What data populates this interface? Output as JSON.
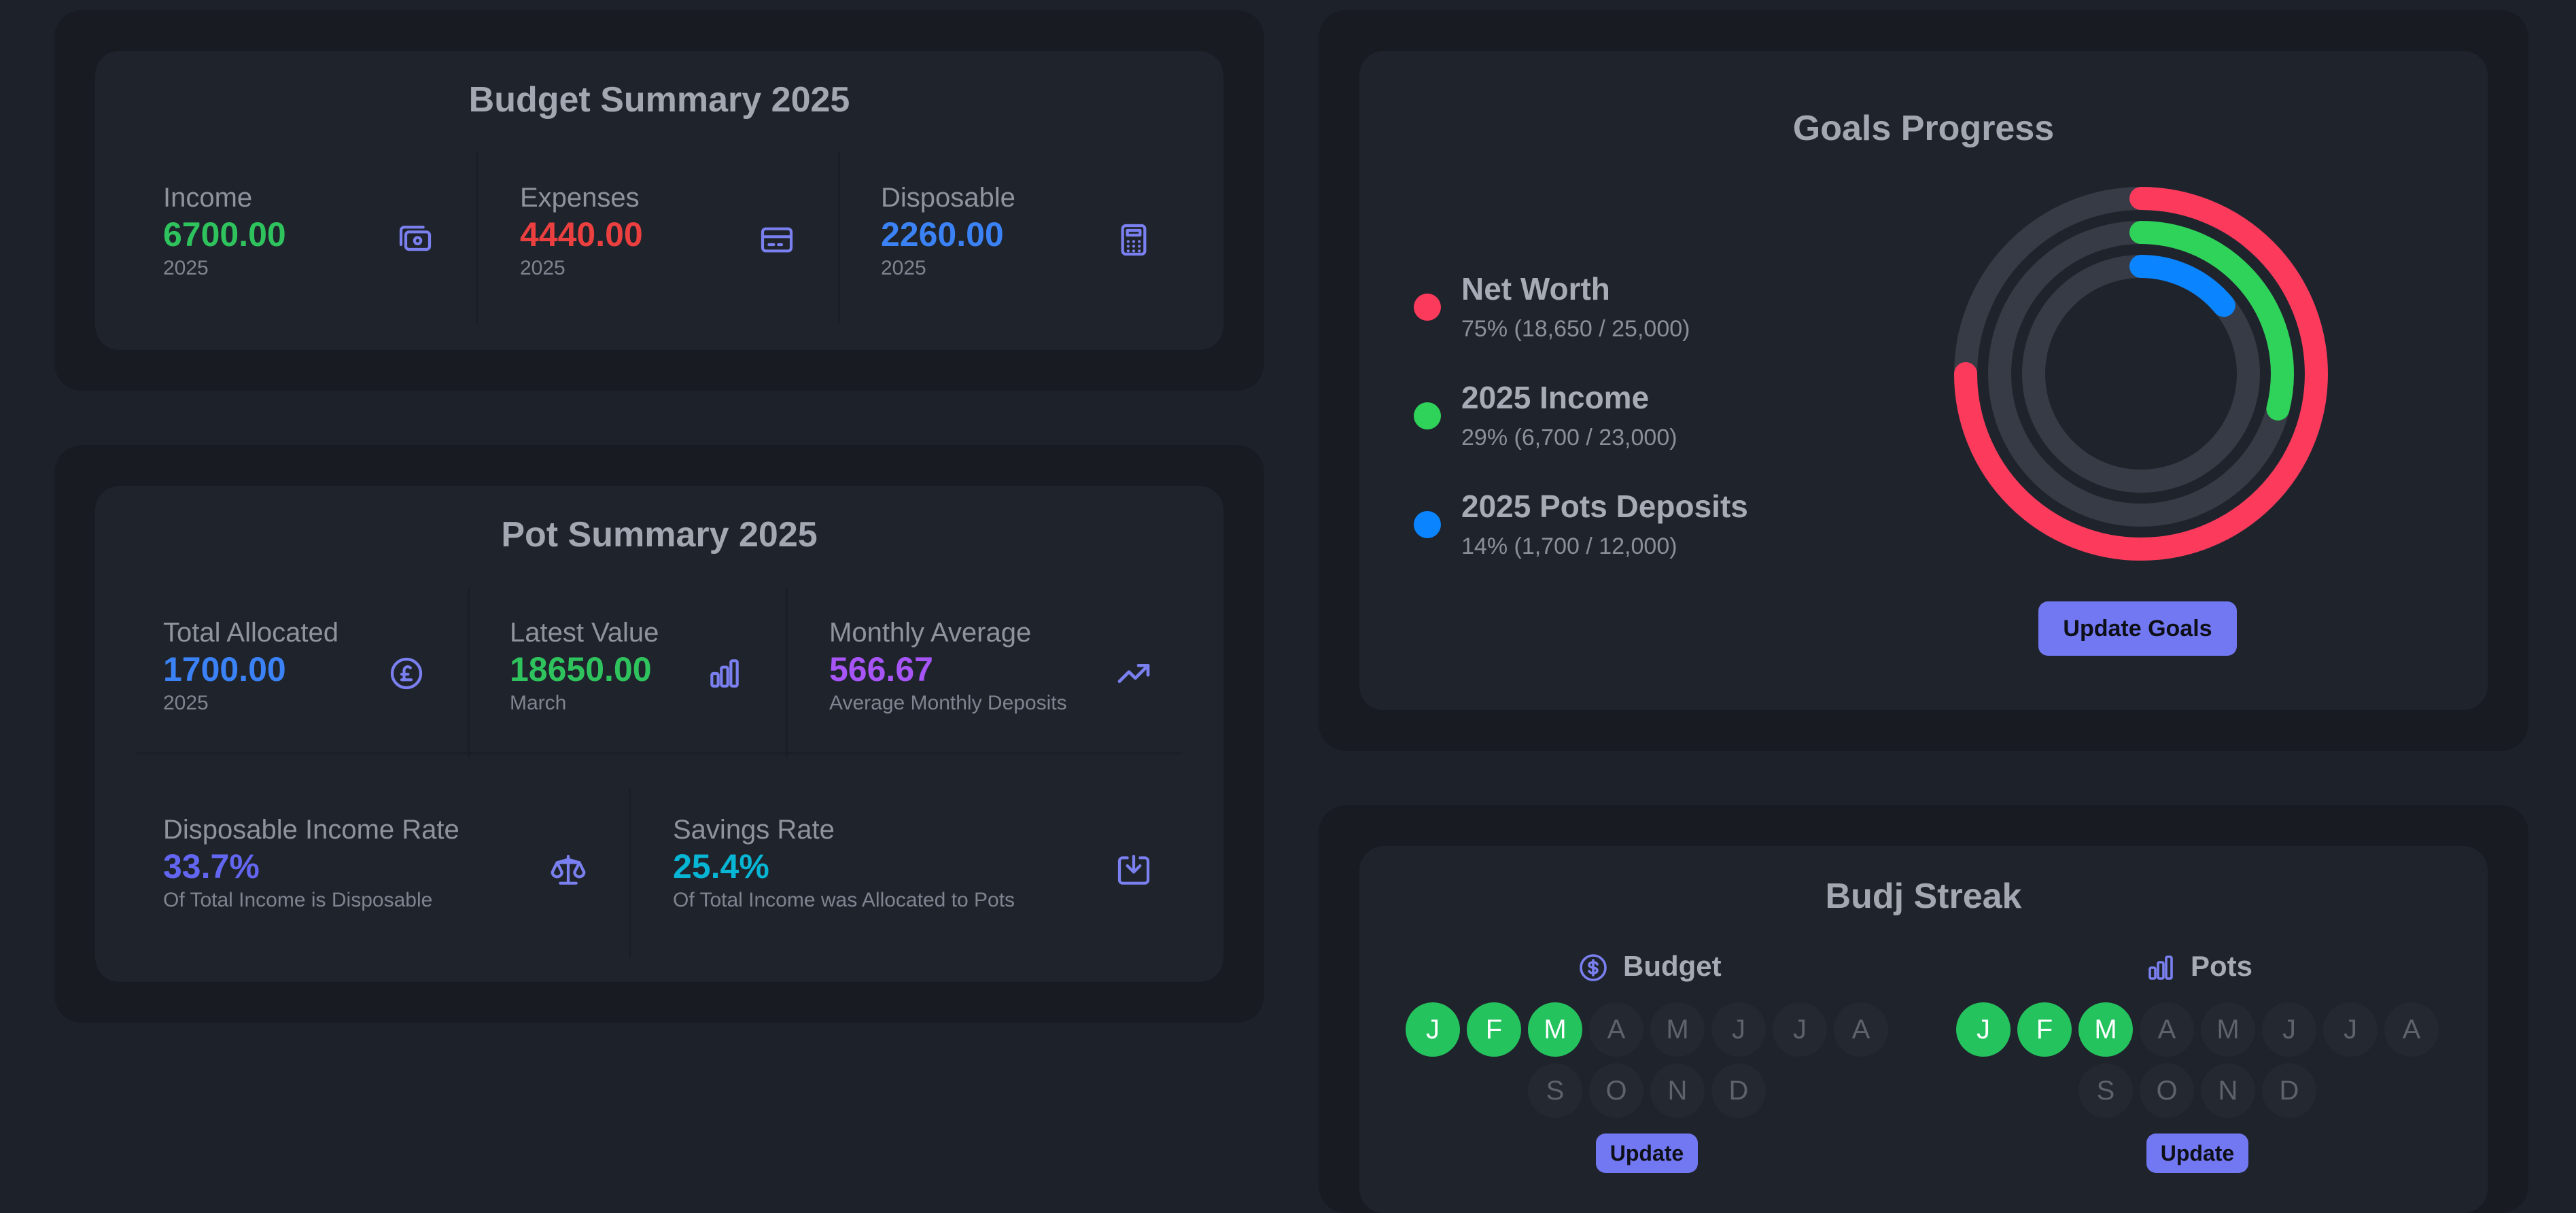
{
  "budget_summary": {
    "title": "Budget Summary 2025",
    "stats": [
      {
        "label": "Income",
        "value": "6700.00",
        "sub": "2025",
        "color": "#2fc35e",
        "icon": "money-icon"
      },
      {
        "label": "Expenses",
        "value": "4440.00",
        "sub": "2025",
        "color": "#ec3f3f",
        "icon": "credit-card-icon"
      },
      {
        "label": "Disposable",
        "value": "2260.00",
        "sub": "2025",
        "color": "#3b82f6",
        "icon": "calculator-icon"
      }
    ]
  },
  "pot_summary": {
    "title": "Pot Summary 2025",
    "stats": [
      {
        "label": "Total Allocated",
        "value": "1700.00",
        "sub": "2025",
        "color": "#3b82f6",
        "icon": "pound-coin-icon"
      },
      {
        "label": "Latest Value",
        "value": "18650.00",
        "sub": "March",
        "color": "#2fc35e",
        "icon": "bar-chart-icon"
      },
      {
        "label": "Monthly Average",
        "value": "566.67",
        "sub": "Average Monthly Deposits",
        "color": "#a855f7",
        "icon": "trending-up-icon"
      },
      {
        "label": "Disposable Income Rate",
        "value": "33.7%",
        "sub": "Of Total Income is Disposable",
        "color": "#6366f1",
        "icon": "scale-icon"
      },
      {
        "label": "Savings Rate",
        "value": "25.4%",
        "sub": "Of Total Income was Allocated to Pots",
        "color": "#06b6d4",
        "icon": "download-tray-icon"
      }
    ]
  },
  "goals": {
    "title": "Goals Progress",
    "items": [
      {
        "name": "Net Worth",
        "detail": "75%  (18,650 / 25,000)",
        "color": "#fb3a5c",
        "progress": 0.75
      },
      {
        "name": "2025 Income",
        "detail": "29%  (6,700 / 23,000)",
        "color": "#2fd35a",
        "progress": 0.29
      },
      {
        "name": "2025 Pots Deposits",
        "detail": "14%  (1,700 / 12,000)",
        "color": "#0a84ff",
        "progress": 0.14
      }
    ],
    "update_label": "Update Goals"
  },
  "streak": {
    "title": "Budj Streak",
    "budget": {
      "label": "Budget",
      "icon": "dollar-coin-icon",
      "months": [
        "J",
        "F",
        "M",
        "A",
        "M",
        "J",
        "J",
        "A",
        "S",
        "O",
        "N",
        "D"
      ],
      "completed": 3,
      "update_label": "Update"
    },
    "pots": {
      "label": "Pots",
      "icon": "bar-chart-icon",
      "months": [
        "J",
        "F",
        "M",
        "A",
        "M",
        "J",
        "J",
        "A",
        "S",
        "O",
        "N",
        "D"
      ],
      "completed": 3,
      "update_label": "Update"
    }
  },
  "colors": {
    "accent": "#7277f2",
    "icon": "#7b80f0",
    "track": "#373b45"
  }
}
